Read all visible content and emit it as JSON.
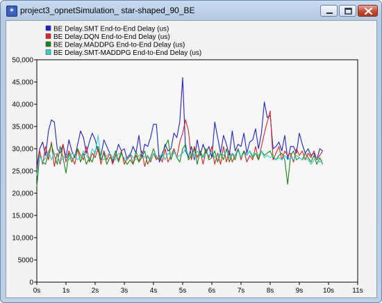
{
  "window": {
    "title": "project3_opnetSimulation_ star-shaped_90_BE",
    "icon": "app-icon"
  },
  "colors": {
    "smt": "#1f1fd6",
    "dqn": "#e62020",
    "maddpg": "#138a13",
    "smt_maddpg": "#2ad0d0",
    "plot_bg": "#f7f7f7",
    "axis": "#000000"
  },
  "chart_data": {
    "type": "line",
    "title": "",
    "xlabel": "",
    "ylabel": "",
    "xlim": [
      0,
      11
    ],
    "ylim": [
      0,
      50000
    ],
    "grid": false,
    "legend_position": "top-left",
    "x_ticks": [
      0,
      1,
      2,
      3,
      4,
      5,
      6,
      7,
      8,
      9,
      10,
      11
    ],
    "x_tick_labels": [
      "0s",
      "1s",
      "2s",
      "3s",
      "4s",
      "5s",
      "6s",
      "7s",
      "8s",
      "9s",
      "10s",
      "11s"
    ],
    "y_ticks": [
      0,
      5000,
      10000,
      15000,
      20000,
      25000,
      30000,
      35000,
      40000,
      45000,
      50000
    ],
    "y_tick_labels": [
      "0",
      "5000",
      "10,000",
      "15,000",
      "20,000",
      "25,000",
      "30,000",
      "35,000",
      "40,000",
      "45,000",
      "50,000"
    ],
    "x": [
      0.0,
      0.1,
      0.2,
      0.3,
      0.4,
      0.5,
      0.6,
      0.7,
      0.8,
      0.9,
      1.0,
      1.1,
      1.2,
      1.3,
      1.4,
      1.5,
      1.6,
      1.7,
      1.8,
      1.9,
      2.0,
      2.1,
      2.2,
      2.3,
      2.4,
      2.5,
      2.6,
      2.7,
      2.8,
      2.9,
      3.0,
      3.1,
      3.2,
      3.3,
      3.4,
      3.5,
      3.6,
      3.7,
      3.8,
      3.9,
      4.0,
      4.1,
      4.2,
      4.3,
      4.4,
      4.5,
      4.6,
      4.7,
      4.8,
      4.9,
      5.0,
      5.1,
      5.2,
      5.3,
      5.4,
      5.5,
      5.6,
      5.7,
      5.8,
      5.9,
      6.0,
      6.1,
      6.2,
      6.3,
      6.4,
      6.5,
      6.6,
      6.7,
      6.8,
      6.9,
      7.0,
      7.1,
      7.2,
      7.3,
      7.4,
      7.5,
      7.6,
      7.7,
      7.8,
      7.9,
      8.0,
      8.1,
      8.2,
      8.3,
      8.4,
      8.5,
      8.6,
      8.7,
      8.8,
      8.9,
      9.0,
      9.1,
      9.2,
      9.3,
      9.4,
      9.5,
      9.6,
      9.7,
      9.8
    ],
    "series": [
      {
        "name": "BE Delay.SMT End-to-End Delay (us)",
        "color": "#1f1fd6",
        "values": [
          26000,
          30000,
          31500,
          28500,
          34000,
          36500,
          36000,
          30000,
          29000,
          31000,
          28000,
          32000,
          29500,
          28000,
          31000,
          34000,
          32500,
          29000,
          31500,
          33500,
          32000,
          29500,
          28500,
          32000,
          30500,
          29000,
          27000,
          28500,
          31000,
          29500,
          30000,
          27500,
          28500,
          30500,
          29000,
          33000,
          28000,
          31000,
          30500,
          32500,
          35500,
          35500,
          27000,
          28500,
          31000,
          29500,
          30000,
          33500,
          32500,
          36000,
          46000,
          29500,
          28000,
          30500,
          27500,
          32000,
          28500,
          31000,
          29000,
          30500,
          28000,
          36000,
          32500,
          29000,
          33000,
          31000,
          28500,
          34000,
          29500,
          31000,
          30500,
          33500,
          29000,
          31500,
          32000,
          34500,
          30000,
          33500,
          40500,
          37000,
          37500,
          30000,
          30500,
          31500,
          29500,
          33000,
          27500,
          30500,
          30500,
          29000,
          33500,
          31000,
          29000,
          30000,
          28500,
          29000,
          27500,
          30000,
          29500
        ]
      },
      {
        "name": "BE Delay.DQN End-to-End Delay (us)",
        "color": "#e62020",
        "values": [
          25000,
          29500,
          26500,
          30500,
          27500,
          31500,
          26000,
          29000,
          26500,
          31000,
          27000,
          29500,
          28000,
          26500,
          30000,
          28500,
          27500,
          30500,
          27000,
          29000,
          28000,
          30000,
          26500,
          29500,
          27500,
          29000,
          26500,
          28500,
          27500,
          29500,
          26500,
          28000,
          29000,
          26500,
          28500,
          27000,
          29500,
          26000,
          28500,
          27000,
          29000,
          27500,
          28500,
          27000,
          30000,
          27000,
          28500,
          30000,
          28000,
          31500,
          33500,
          36500,
          34000,
          27500,
          30500,
          28000,
          29500,
          26500,
          29500,
          28000,
          30500,
          26500,
          29000,
          26500,
          30500,
          27000,
          29500,
          27000,
          28500,
          30000,
          27500,
          29500,
          27000,
          28500,
          27500,
          30500,
          27500,
          30500,
          33500,
          36000,
          38500,
          27500,
          29000,
          30500,
          27500,
          29500,
          28500,
          29000,
          27000,
          30000,
          28500,
          29500,
          27500,
          29000,
          28000,
          29500,
          27500,
          28500,
          29500
        ]
      },
      {
        "name": "BE Delay.MADDPG End-to-End Delay (us)",
        "color": "#138a13",
        "values": [
          21500,
          28500,
          27000,
          26500,
          29000,
          31000,
          28500,
          26500,
          30500,
          28000,
          24500,
          29000,
          27000,
          28500,
          30000,
          27000,
          29000,
          26500,
          28000,
          27000,
          29500,
          30500,
          27500,
          29000,
          26500,
          28000,
          27500,
          29500,
          27000,
          29000,
          27500,
          26500,
          27500,
          26500,
          29500,
          27000,
          28000,
          29500,
          26500,
          28000,
          30000,
          28000,
          27500,
          29000,
          30500,
          32000,
          27500,
          29500,
          28000,
          27000,
          30000,
          31000,
          27500,
          28500,
          30000,
          26500,
          29500,
          28000,
          30000,
          27500,
          28000,
          29500,
          27000,
          29000,
          27500,
          30000,
          27000,
          29000,
          27500,
          30000,
          28000,
          29500,
          28500,
          29500,
          28000,
          29000,
          27500,
          29500,
          28500,
          29000,
          29500,
          28000,
          27500,
          28500,
          29000,
          27500,
          22000,
          28500,
          29500,
          27500,
          28000,
          27500,
          29000,
          28000,
          27000,
          28500,
          26500,
          28000,
          26500
        ]
      },
      {
        "name": "BE Delay.SMT-MADDPG End-to-End Delay (us)",
        "color": "#2ad0d0",
        "values": [
          24000,
          28500,
          27000,
          28000,
          29500,
          27500,
          29000,
          28500,
          27000,
          28000,
          28500,
          27500,
          29000,
          28500,
          27500,
          28000,
          29500,
          28500,
          27500,
          30000,
          29000,
          33000,
          28000,
          27500,
          28500,
          29000,
          28000,
          27500,
          29000,
          28500,
          28000,
          27500,
          29000,
          28000,
          27500,
          28500,
          29000,
          28000,
          28500,
          27500,
          29000,
          28500,
          28000,
          29000,
          27500,
          29000,
          28500,
          29500,
          28000,
          28500,
          29000,
          30000,
          28500,
          29000,
          28000,
          29500,
          28500,
          28000,
          29000,
          28500,
          29500,
          28000,
          28500,
          29000,
          28500,
          29500,
          28000,
          29000,
          28500,
          29500,
          28000,
          29000,
          28500,
          29500,
          28500,
          29000,
          28500,
          29500,
          28000,
          28500,
          28000,
          28500,
          27500,
          28000,
          27500,
          28500,
          27500,
          28000,
          27500,
          28500,
          28000,
          27500,
          28000,
          27500,
          26500,
          27500,
          28000,
          27000,
          27500
        ]
      }
    ]
  }
}
